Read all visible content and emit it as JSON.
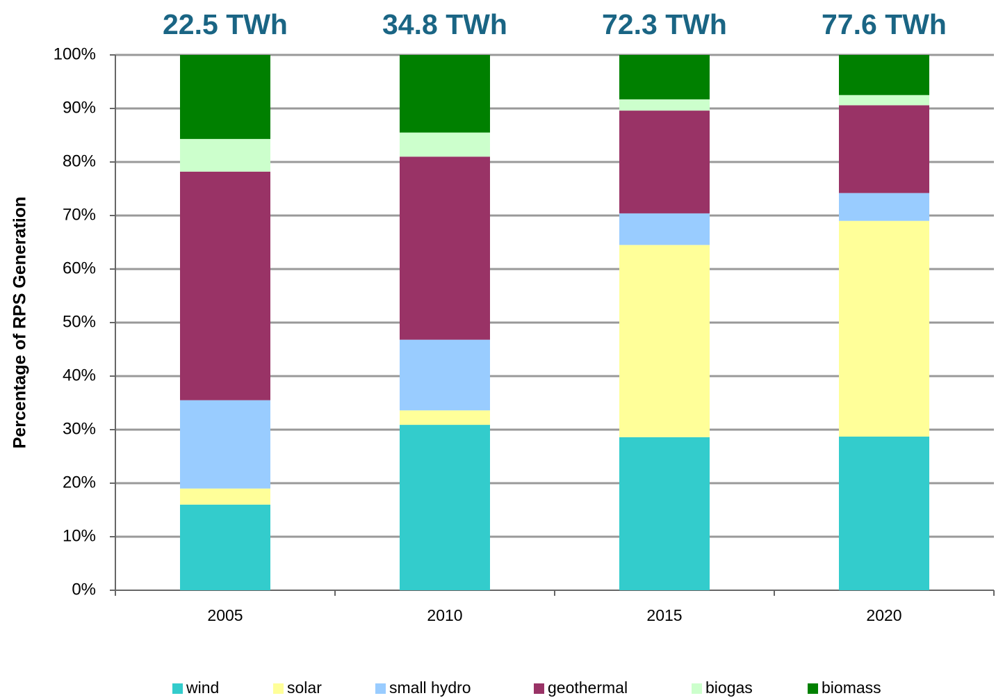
{
  "chart_data": {
    "type": "stacked_bar",
    "y_label": "Percentage of RPS Generation",
    "categories": [
      "2005",
      "2010",
      "2015",
      "2020"
    ],
    "annotations": [
      "22.5 TWh",
      "34.8 TWh",
      "72.3 TWh",
      "77.6 TWh"
    ],
    "series": [
      {
        "name": "wind",
        "color": "#33cccc",
        "values": [
          16,
          30.9,
          28.6,
          28.7
        ]
      },
      {
        "name": "solar",
        "color": "#ffff99",
        "values": [
          3,
          2.7,
          35.9,
          40.3
        ]
      },
      {
        "name": "small hydro",
        "color": "#99ccff",
        "values": [
          16.5,
          13.2,
          5.9,
          5.2
        ]
      },
      {
        "name": "geothermal",
        "color": "#993366",
        "values": [
          42.7,
          34.2,
          19.2,
          16.4
        ]
      },
      {
        "name": "biogas",
        "color": "#ccffcc",
        "values": [
          6.1,
          4.5,
          2.1,
          1.9
        ]
      },
      {
        "name": "biomass",
        "color": "#008000",
        "values": [
          15.7,
          14.5,
          8.3,
          7.5
        ]
      }
    ],
    "ylim": [
      0,
      100
    ],
    "yticks": [
      {
        "value": 0,
        "label": "0%"
      },
      {
        "value": 10,
        "label": "10%"
      },
      {
        "value": 20,
        "label": "20%"
      },
      {
        "value": 30,
        "label": "30%"
      },
      {
        "value": 40,
        "label": "40%"
      },
      {
        "value": 50,
        "label": "50%"
      },
      {
        "value": 60,
        "label": "60%"
      },
      {
        "value": 70,
        "label": "70%"
      },
      {
        "value": 80,
        "label": "80%"
      },
      {
        "value": 90,
        "label": "90%"
      },
      {
        "value": 100,
        "label": "100%"
      }
    ],
    "grid": true,
    "legend": "bottom"
  }
}
